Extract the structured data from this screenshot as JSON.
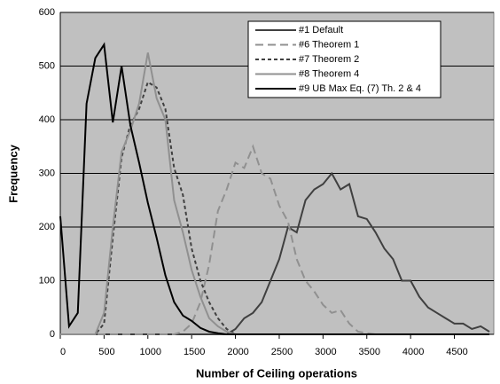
{
  "chart_data": {
    "type": "line",
    "xlabel": "Number of Ceiling operations",
    "ylabel": "Frequency",
    "x": [
      0,
      100,
      200,
      300,
      400,
      500,
      600,
      700,
      800,
      900,
      1000,
      1100,
      1200,
      1300,
      1400,
      1500,
      1600,
      1700,
      1800,
      1900,
      2000,
      2100,
      2200,
      2300,
      2400,
      2500,
      2600,
      2700,
      2800,
      2900,
      3000,
      3100,
      3200,
      3300,
      3400,
      3500,
      3600,
      3700,
      3800,
      3900,
      4000,
      4100,
      4200,
      4300,
      4400,
      4500,
      4600,
      4700,
      4800,
      4900
    ],
    "series": [
      {
        "name": "#1 Default",
        "color": "#404040",
        "dash": "solid",
        "values": [
          0,
          0,
          0,
          0,
          0,
          0,
          0,
          0,
          0,
          0,
          0,
          0,
          0,
          0,
          0,
          0,
          0,
          0,
          0,
          0,
          10,
          30,
          40,
          60,
          100,
          140,
          200,
          190,
          250,
          270,
          280,
          300,
          270,
          280,
          220,
          215,
          190,
          160,
          140,
          100,
          100,
          70,
          50,
          40,
          30,
          20,
          20,
          10,
          15,
          5
        ]
      },
      {
        "name": "#6 Theorem 1",
        "color": "#909090",
        "dash": "dashed",
        "values": [
          0,
          0,
          0,
          0,
          0,
          0,
          0,
          0,
          0,
          0,
          0,
          0,
          0,
          0,
          5,
          20,
          60,
          130,
          230,
          270,
          320,
          310,
          350,
          300,
          290,
          240,
          210,
          140,
          100,
          80,
          55,
          40,
          45,
          20,
          5,
          2,
          0,
          0,
          0,
          0,
          0,
          0,
          0,
          0,
          0,
          0,
          0,
          0,
          0,
          0
        ]
      },
      {
        "name": "#7 Theorem 2",
        "color": "#404040",
        "dash": "dotted",
        "values": [
          0,
          0,
          0,
          0,
          0,
          20,
          180,
          330,
          390,
          420,
          470,
          460,
          420,
          310,
          260,
          160,
          100,
          60,
          30,
          10,
          0,
          0,
          0,
          0,
          0,
          0,
          0,
          0,
          0,
          0,
          0,
          0,
          0,
          0,
          0,
          0,
          0,
          0,
          0,
          0,
          0,
          0,
          0,
          0,
          0,
          0,
          0,
          0,
          0,
          0
        ]
      },
      {
        "name": "#8 Theorem 4",
        "color": "#909090",
        "dash": "solid",
        "values": [
          0,
          0,
          0,
          0,
          0,
          40,
          200,
          340,
          380,
          430,
          525,
          440,
          400,
          250,
          190,
          120,
          70,
          30,
          15,
          5,
          0,
          0,
          0,
          0,
          0,
          0,
          0,
          0,
          0,
          0,
          0,
          0,
          0,
          0,
          0,
          0,
          0,
          0,
          0,
          0,
          0,
          0,
          0,
          0,
          0,
          0,
          0,
          0,
          0,
          0
        ]
      },
      {
        "name": "#9 UB Max Eq. (7) Th. 2 & 4",
        "color": "#000000",
        "dash": "solid",
        "values": [
          220,
          15,
          40,
          430,
          515,
          540,
          395,
          500,
          390,
          320,
          245,
          180,
          110,
          60,
          35,
          25,
          12,
          5,
          2,
          0,
          0,
          0,
          0,
          0,
          0,
          0,
          0,
          0,
          0,
          0,
          0,
          0,
          0,
          0,
          0,
          0,
          0,
          0,
          0,
          0,
          0,
          0,
          0,
          0,
          0,
          0,
          0,
          0,
          0,
          0
        ]
      }
    ],
    "xlim": [
      0,
      4950
    ],
    "xticks": [
      0,
      500,
      1000,
      1500,
      2000,
      2500,
      3000,
      3500,
      4000,
      4500
    ],
    "ylim": [
      0,
      600
    ],
    "yticks": [
      0,
      100,
      200,
      300,
      400,
      500,
      600
    ],
    "grid": true,
    "legend": "upper right",
    "background": "#c0c0c0"
  }
}
